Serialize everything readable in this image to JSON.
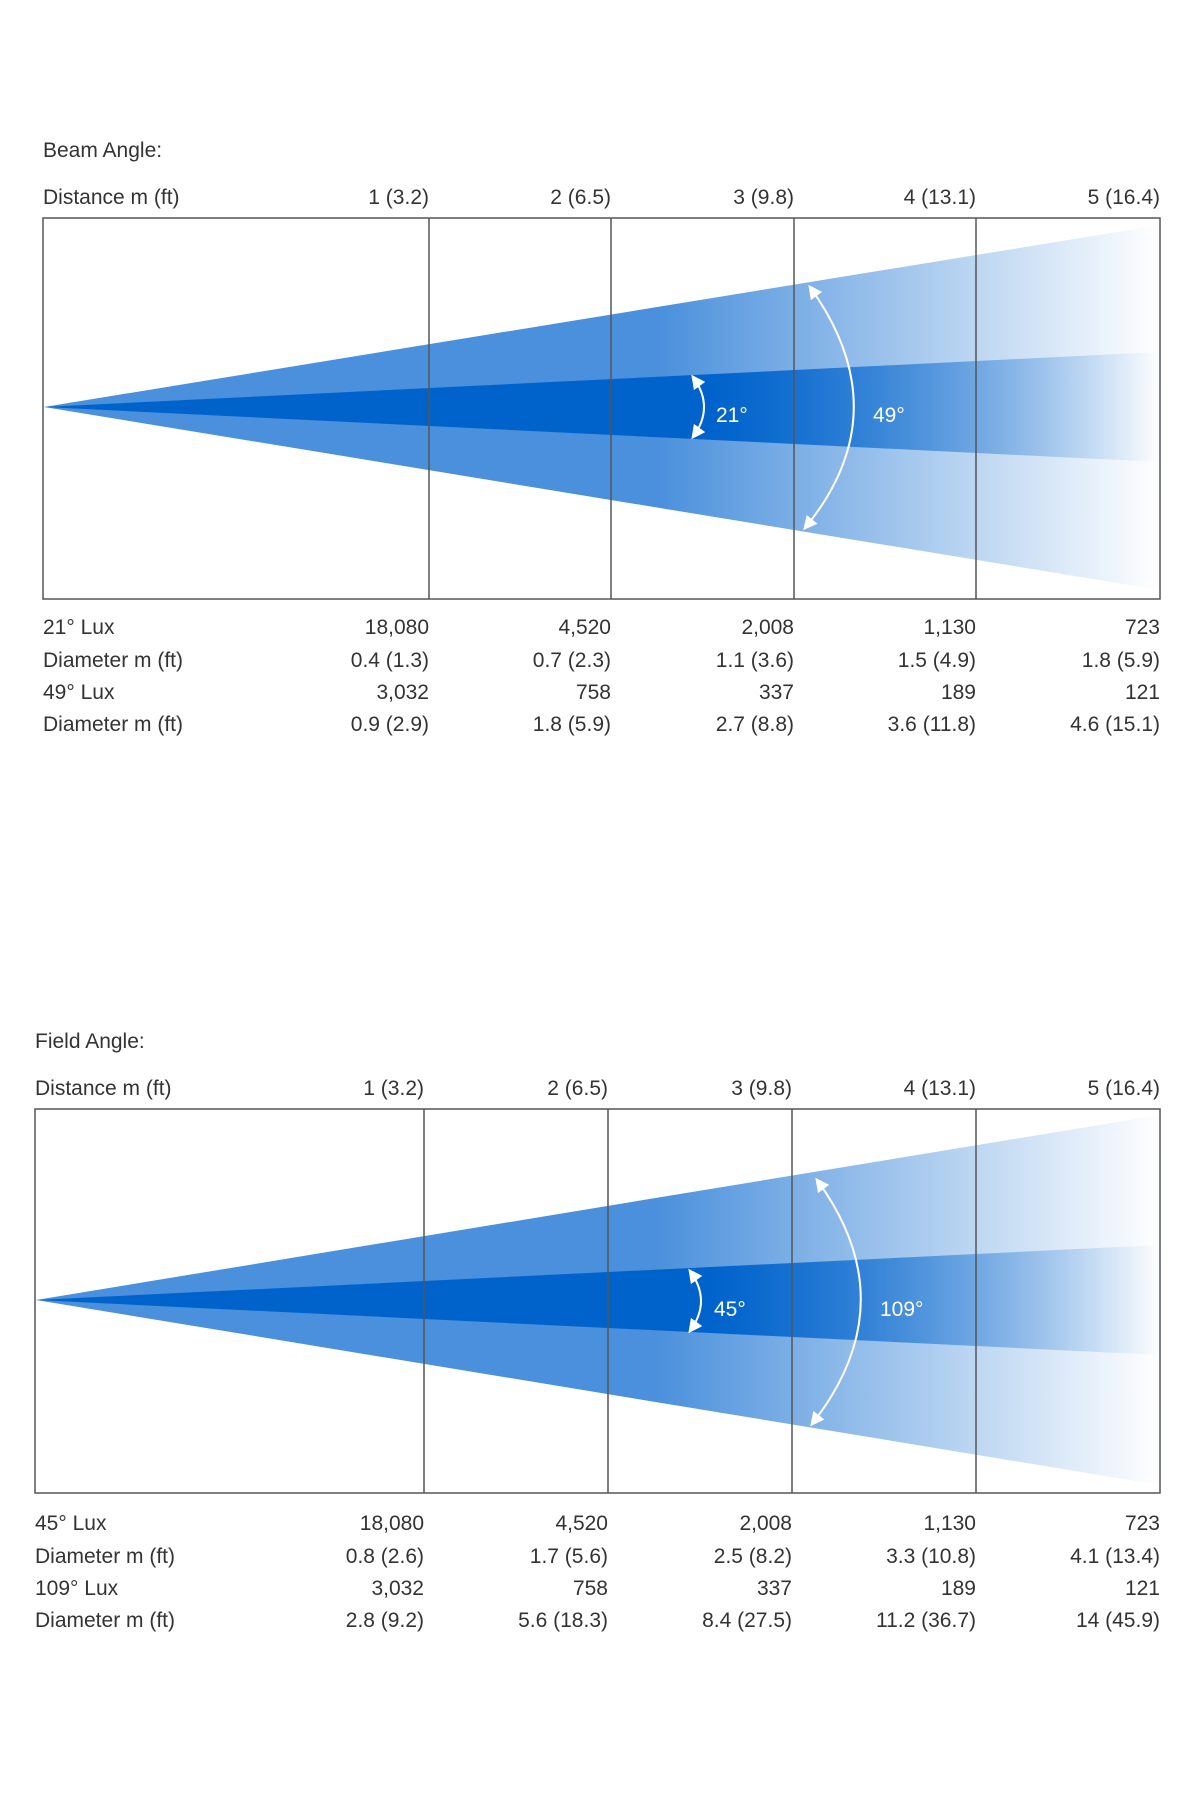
{
  "colors": {
    "beam_outer": "#4a90dc",
    "beam_inner": "#0063cc",
    "frame": "#555555",
    "text": "#333333",
    "arrow": "#ffffff"
  },
  "sections": [
    {
      "title": "Beam Angle:",
      "distance_label": "Distance m (ft)",
      "distances": [
        "1 (3.2)",
        "2 (6.5)",
        "3 (9.8)",
        "4 (13.1)",
        "5 (16.4)"
      ],
      "inner_angle_label": "21°",
      "outer_angle_label": "49°",
      "rows": [
        {
          "label": "21°  Lux",
          "values": [
            "18,080",
            "4,520",
            "2,008",
            "1,130",
            "723"
          ]
        },
        {
          "label": "Diameter m (ft)",
          "values": [
            "0.4 (1.3)",
            "0.7 (2.3)",
            "1.1 (3.6)",
            "1.5 (4.9)",
            "1.8 (5.9)"
          ]
        },
        {
          "label": "49° Lux",
          "values": [
            "3,032",
            "758",
            "337",
            "189",
            "121"
          ]
        },
        {
          "label": "Diameter m (ft)",
          "values": [
            "0.9 (2.9)",
            "1.8 (5.9)",
            "2.7 (8.8)",
            "3.6 (11.8)",
            "4.6 (15.1)"
          ]
        }
      ]
    },
    {
      "title": "Field Angle:",
      "distance_label": "Distance m (ft)",
      "distances": [
        "1 (3.2)",
        "2 (6.5)",
        "3 (9.8)",
        "4 (13.1)",
        "5 (16.4)"
      ],
      "inner_angle_label": "45°",
      "outer_angle_label": "109°",
      "rows": [
        {
          "label": "45°  Lux",
          "values": [
            "18,080",
            "4,520",
            "2,008",
            "1,130",
            "723"
          ]
        },
        {
          "label": "Diameter m (ft)",
          "values": [
            "0.8 (2.6)",
            "1.7 (5.6)",
            "2.5 (8.2)",
            "3.3 (10.8)",
            "4.1 (13.4)"
          ]
        },
        {
          "label": "109° Lux",
          "values": [
            "3,032",
            "758",
            "337",
            "189",
            "121"
          ]
        },
        {
          "label": "Diameter m (ft)",
          "values": [
            "2.8 (9.2)",
            "5.6 (18.3)",
            "8.4 (27.5)",
            "11.2 (36.7)",
            "14 (45.9)"
          ]
        }
      ]
    }
  ]
}
